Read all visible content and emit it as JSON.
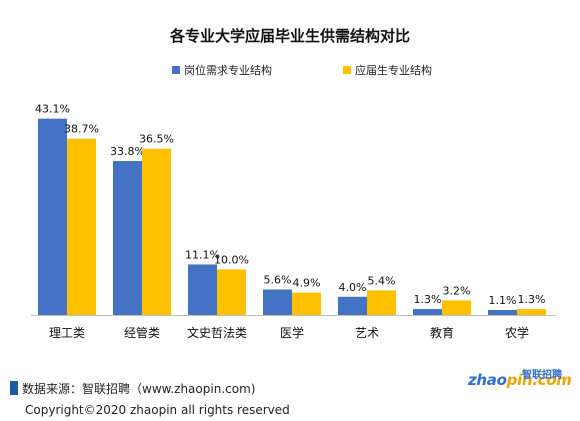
{
  "chart_data": {
    "type": "bar",
    "title": "各专业大学应届毕业生供需结构对比",
    "categories": [
      "理工类",
      "经管类",
      "文史哲法类",
      "医学",
      "艺术",
      "教育",
      "农学"
    ],
    "series": [
      {
        "name": "岗位需求专业结构",
        "color": "#4472c4",
        "values": [
          43.1,
          33.8,
          11.1,
          5.6,
          4.0,
          1.3,
          1.1
        ],
        "labels": [
          "43.1%",
          "33.8%",
          "11.1%",
          "5.6%",
          "4.0%",
          "1.3%",
          "1.1%"
        ]
      },
      {
        "name": "应届生专业结构",
        "color": "#ffc000",
        "values": [
          38.7,
          36.5,
          10.0,
          4.9,
          5.4,
          3.2,
          1.3
        ],
        "labels": [
          "38.7%",
          "36.5%",
          "10.0%",
          "4.9%",
          "5.4%",
          "3.2%",
          "1.3%"
        ]
      }
    ],
    "ylim": [
      0,
      45
    ],
    "grid": false,
    "legend_position": "top-center",
    "value_suffix": "%"
  },
  "footer": {
    "source": "数据来源：智联招聘（www.zhaopin.com)",
    "copyright": "Copyright©2020 zhaopin all rights reserved",
    "logo_part1": "zhao",
    "logo_part2": "pin.com",
    "logo_cn": "智联招聘"
  }
}
